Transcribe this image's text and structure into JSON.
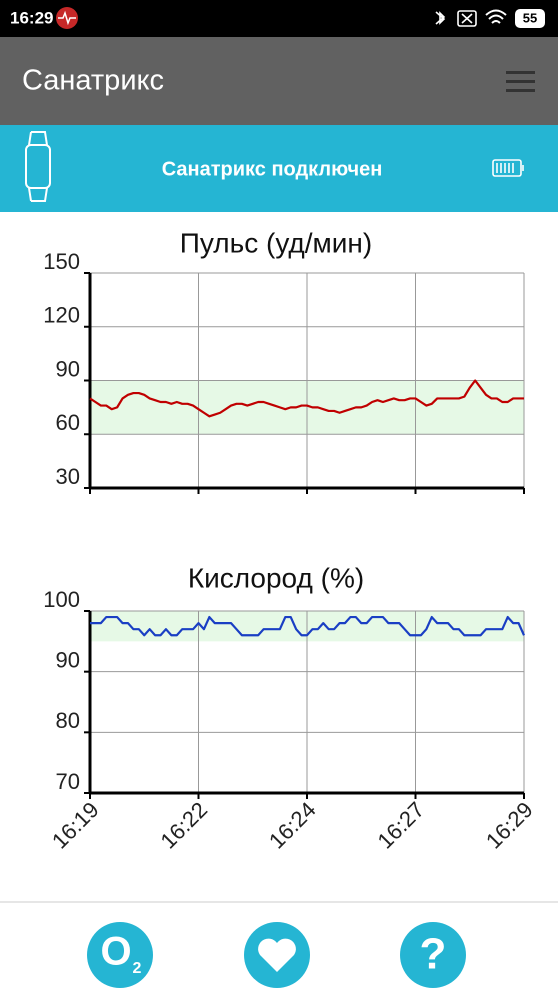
{
  "status_bar": {
    "time": "16:29",
    "battery": "55"
  },
  "app_bar": {
    "title": "Санатрикс"
  },
  "banner": {
    "text": "Санатрикс подключен"
  },
  "chart_data": [
    {
      "type": "line",
      "title": "Пульс (уд/мин)",
      "xlim": [
        0,
        80
      ],
      "xticks": [
        0,
        20,
        40,
        60,
        80
      ],
      "show_xtick_labels": false,
      "ylim": [
        30,
        150
      ],
      "yticks": [
        30,
        60,
        90,
        120,
        150
      ],
      "grid": true,
      "band": [
        60,
        90
      ],
      "band_color": "#e6f9e6",
      "series": [
        {
          "name": "Пульс",
          "color": "#c00000",
          "values": [
            80,
            78,
            76,
            76,
            74,
            75,
            80,
            82,
            83,
            83,
            82,
            80,
            79,
            78,
            78,
            77,
            78,
            77,
            77,
            76,
            74,
            72,
            70,
            71,
            72,
            74,
            76,
            77,
            77,
            76,
            77,
            78,
            78,
            77,
            76,
            75,
            74,
            75,
            75,
            76,
            76,
            75,
            75,
            74,
            73,
            73,
            72,
            73,
            74,
            75,
            75,
            76,
            78,
            79,
            78,
            79,
            80,
            79,
            79,
            80,
            80,
            78,
            76,
            77,
            80,
            80,
            80,
            80,
            80,
            81,
            86,
            90,
            86,
            82,
            80,
            80,
            78,
            78,
            80,
            80,
            80
          ]
        }
      ]
    },
    {
      "type": "line",
      "title": "Кислород (%)",
      "xlim": [
        0,
        80
      ],
      "xticks": [
        {
          "value": 0,
          "label": "16:19"
        },
        {
          "value": 20,
          "label": "16:22"
        },
        {
          "value": 40,
          "label": "16:24"
        },
        {
          "value": 60,
          "label": "16:27"
        },
        {
          "value": 80,
          "label": "16:29"
        }
      ],
      "show_xtick_labels": true,
      "ylim": [
        70,
        100
      ],
      "yticks": [
        70,
        80,
        90,
        100
      ],
      "grid": true,
      "band": [
        95,
        100
      ],
      "band_color": "#e6f9e6",
      "series": [
        {
          "name": "Кислород",
          "color": "#1a3fc4",
          "values": [
            98,
            98,
            98,
            99,
            99,
            99,
            98,
            98,
            97,
            97,
            96,
            97,
            96,
            96,
            97,
            96,
            96,
            97,
            97,
            97,
            98,
            97,
            99,
            98,
            98,
            98,
            98,
            97,
            96,
            96,
            96,
            96,
            97,
            97,
            97,
            97,
            99,
            99,
            97,
            96,
            96,
            97,
            97,
            98,
            97,
            97,
            98,
            98,
            99,
            99,
            98,
            98,
            99,
            99,
            99,
            98,
            98,
            98,
            97,
            96,
            96,
            96,
            97,
            99,
            98,
            98,
            98,
            97,
            97,
            96,
            96,
            96,
            96,
            97,
            97,
            97,
            97,
            99,
            98,
            98,
            96
          ]
        }
      ]
    }
  ],
  "bottom_nav": {
    "oxygen_symbol": "O",
    "oxygen_subscript": "2",
    "help": "?"
  }
}
